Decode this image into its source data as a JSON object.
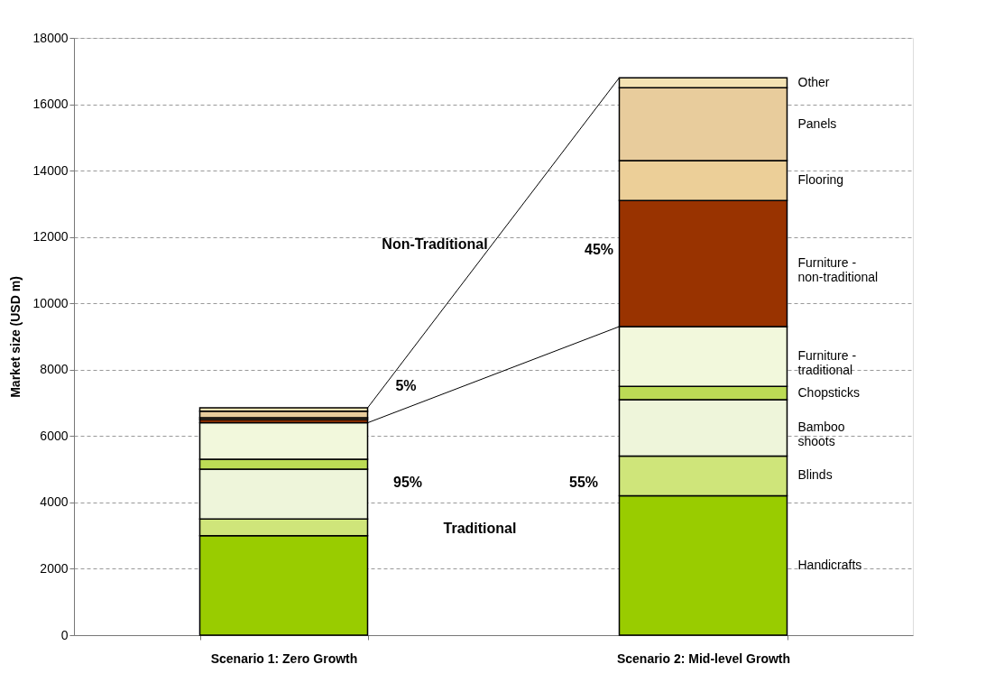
{
  "chart_data": {
    "type": "bar",
    "stacked": true,
    "ylabel": "Market size (USD m)",
    "categories": [
      "Scenario 1: Zero Growth",
      "Scenario 2: Mid-level Growth"
    ],
    "series": [
      {
        "name": "Handicrafts",
        "color": "#99cc00",
        "values": [
          3000,
          4200
        ]
      },
      {
        "name": "Blinds",
        "color": "#cfe57a",
        "values": [
          500,
          1200
        ]
      },
      {
        "name": "Bamboo shoots",
        "color": "#eef5da",
        "values": [
          1500,
          1700
        ]
      },
      {
        "name": "Chopsticks",
        "color": "#bcdb55",
        "values": [
          300,
          400
        ]
      },
      {
        "name": "Furniture - traditional",
        "color": "#f2f8dc",
        "values": [
          1100,
          1800
        ]
      },
      {
        "name": "Furniture - non-traditional",
        "color": "#993300",
        "values": [
          100,
          3800
        ]
      },
      {
        "name": "Flooring",
        "color": "#eccf98",
        "values": [
          50,
          1200
        ]
      },
      {
        "name": "Panels",
        "color": "#e8cc9c",
        "values": [
          200,
          2200
        ]
      },
      {
        "name": "Other",
        "color": "#f5e3b3",
        "values": [
          100,
          300
        ]
      }
    ],
    "ylim": [
      0,
      18000
    ],
    "yticks": [
      0,
      2000,
      4000,
      6000,
      8000,
      10000,
      12000,
      14000,
      16000,
      18000
    ],
    "grid": "y",
    "annotations": [
      "Non-Traditional",
      "45%",
      "5%",
      "95%",
      "55%",
      "Traditional"
    ]
  }
}
